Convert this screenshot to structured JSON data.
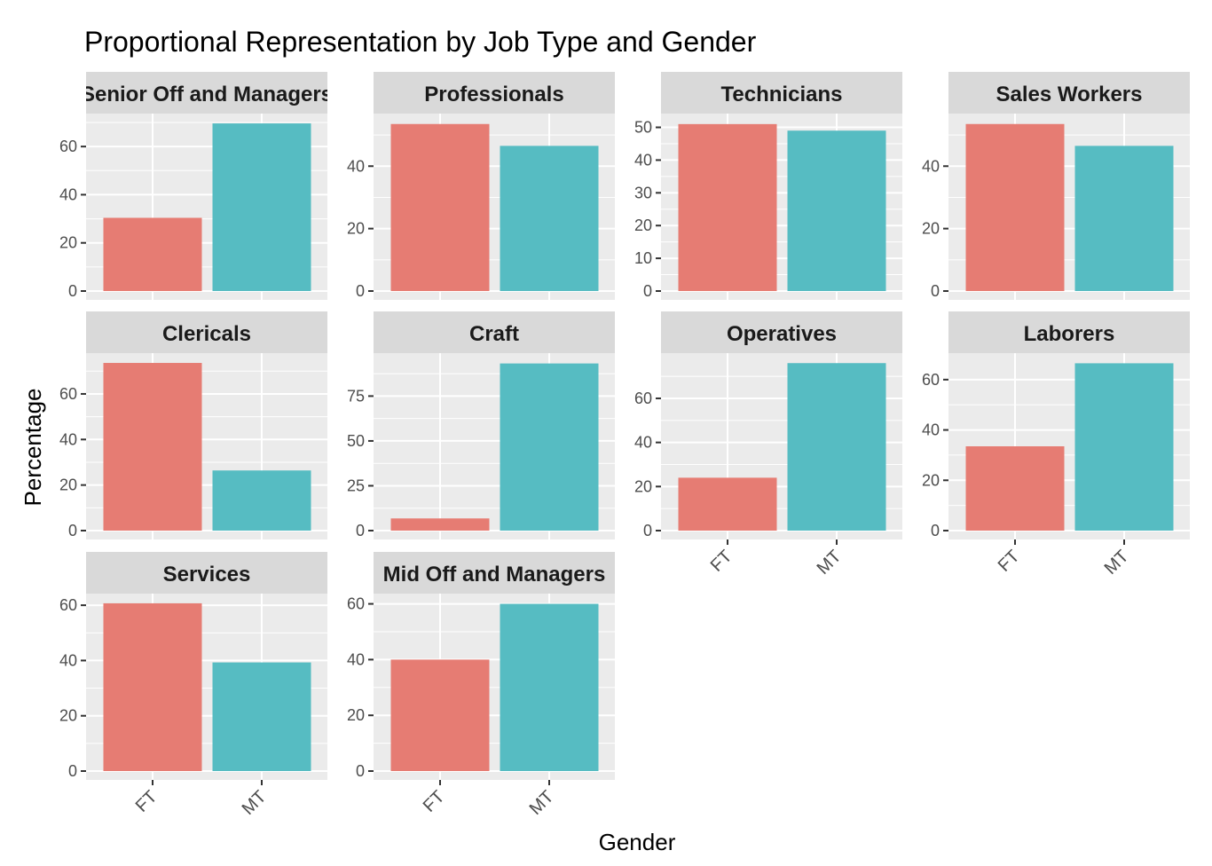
{
  "chart_data": {
    "type": "bar",
    "title": "Proportional Representation by Job Type and Gender",
    "xlabel": "Gender",
    "ylabel": "Percentage",
    "categories": [
      "FT",
      "MT"
    ],
    "colors": {
      "FT": "#E67C73",
      "MT": "#56BCC2",
      "panel": "#EBEBEB",
      "strip": "#D9D9D9",
      "grid": "#FFFFFF"
    },
    "grid": true,
    "legend": "none",
    "facets": [
      {
        "label": "Senior Off and Managers",
        "values": [
          30.4,
          69.6
        ],
        "ylim": [
          0,
          70
        ],
        "yticks": [
          0,
          20,
          40,
          60
        ]
      },
      {
        "label": "Professionals",
        "values": [
          53.5,
          46.5
        ],
        "ylim": [
          0,
          54
        ],
        "yticks": [
          0,
          20,
          40
        ]
      },
      {
        "label": "Technicians",
        "values": [
          51.0,
          49.0
        ],
        "ylim": [
          0,
          51.5
        ],
        "yticks": [
          0,
          10,
          20,
          30,
          40,
          50
        ]
      },
      {
        "label": "Sales Workers",
        "values": [
          53.5,
          46.5
        ],
        "ylim": [
          0,
          54
        ],
        "yticks": [
          0,
          20,
          40
        ]
      },
      {
        "label": "Clericals",
        "values": [
          73.6,
          26.4
        ],
        "ylim": [
          0,
          74
        ],
        "yticks": [
          0,
          20,
          40,
          60
        ]
      },
      {
        "label": "Craft",
        "values": [
          6.8,
          93.2
        ],
        "ylim": [
          0,
          94
        ],
        "yticks": [
          0,
          25,
          50,
          75
        ]
      },
      {
        "label": "Operatives",
        "values": [
          24.0,
          76.0
        ],
        "ylim": [
          0,
          76.5
        ],
        "yticks": [
          0,
          20,
          40,
          60
        ]
      },
      {
        "label": "Laborers",
        "values": [
          33.5,
          66.5
        ],
        "ylim": [
          0,
          67
        ],
        "yticks": [
          0,
          20,
          40,
          60
        ]
      },
      {
        "label": "Services",
        "values": [
          60.7,
          39.3
        ],
        "ylim": [
          0,
          61
        ],
        "yticks": [
          0,
          20,
          40,
          60
        ]
      },
      {
        "label": "Mid Off and Managers",
        "values": [
          40.0,
          60.0
        ],
        "ylim": [
          0,
          60.5
        ],
        "yticks": [
          0,
          20,
          40,
          60
        ]
      }
    ]
  }
}
